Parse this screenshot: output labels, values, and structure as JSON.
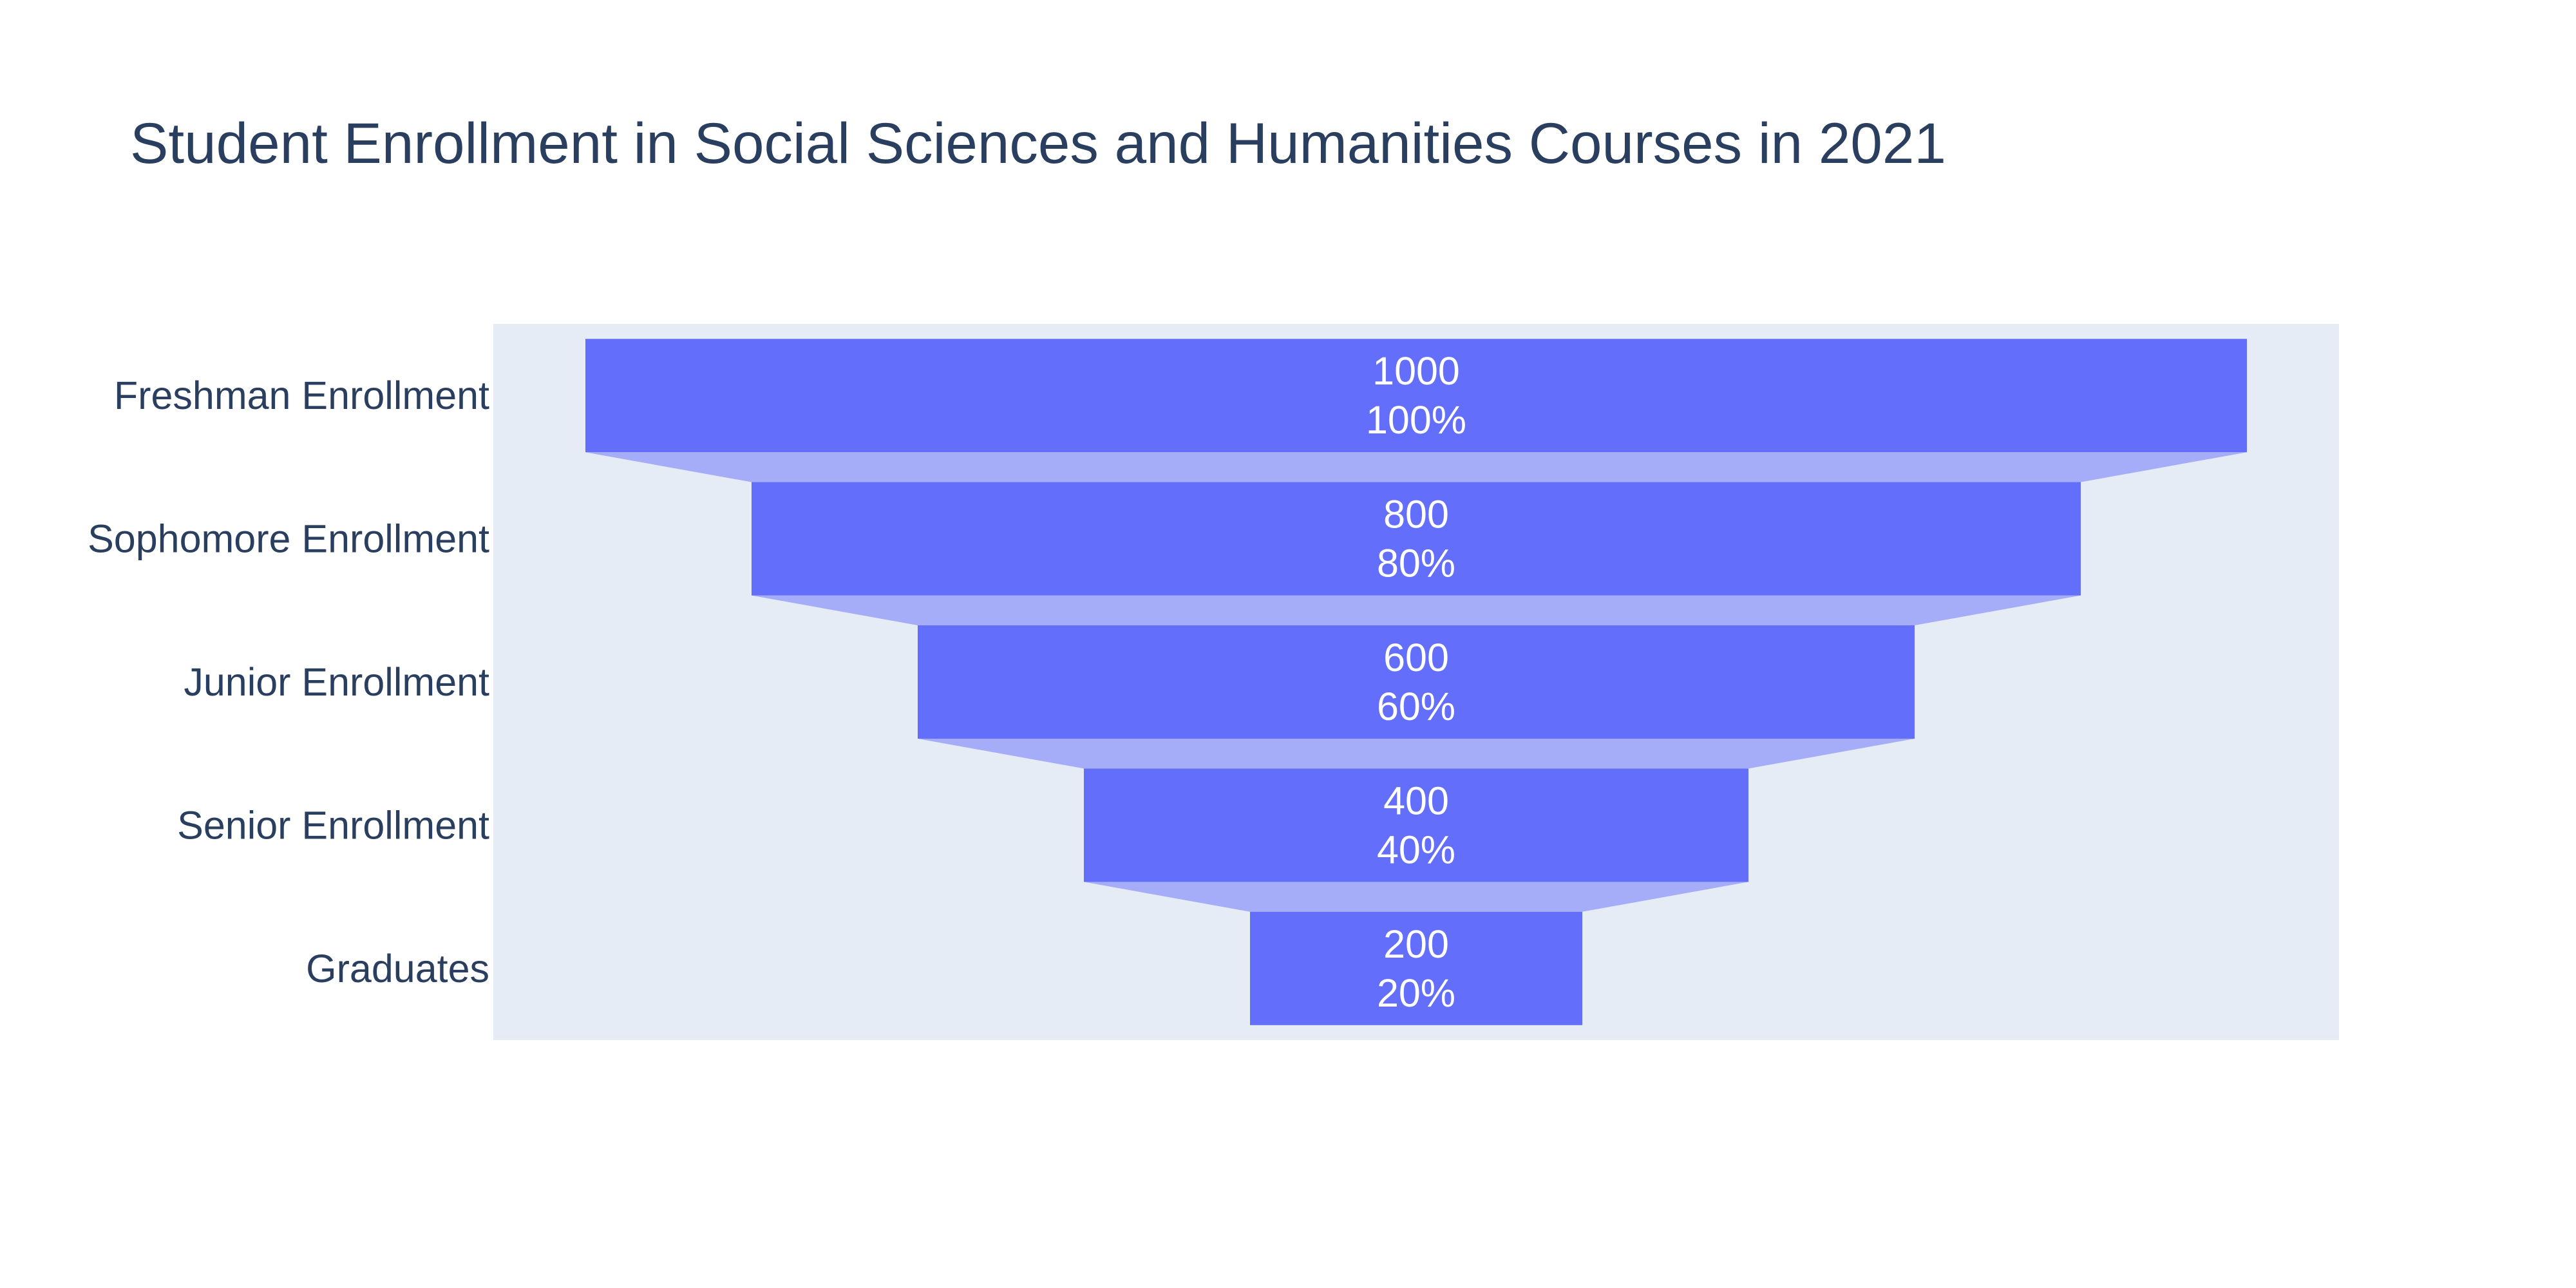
{
  "colors": {
    "plot_bg": "#e5ecf6",
    "bar": "#636efa",
    "connector": "#a5acf8",
    "text": "#2a3f5f",
    "bar_text": "#ffffff"
  },
  "chart_data": {
    "type": "funnel",
    "title": "Student Enrollment in Social Sciences and Humanities Courses in 2021",
    "categories": [
      "Freshman Enrollment",
      "Sophomore Enrollment",
      "Junior Enrollment",
      "Senior Enrollment",
      "Graduates"
    ],
    "values": [
      1000,
      800,
      600,
      400,
      200
    ],
    "percent_labels": [
      "100%",
      "80%",
      "60%",
      "40%",
      "20%"
    ],
    "textinfo": "value+percent initial",
    "orientation": "horizontal",
    "grid": false,
    "legend": "none"
  }
}
